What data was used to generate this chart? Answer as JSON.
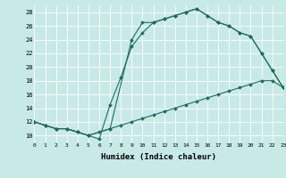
{
  "xlabel": "Humidex (Indice chaleur)",
  "xlim": [
    0,
    23
  ],
  "ylim": [
    9,
    29
  ],
  "yticks": [
    10,
    12,
    14,
    16,
    18,
    20,
    22,
    24,
    26,
    28
  ],
  "xticks": [
    0,
    1,
    2,
    3,
    4,
    5,
    6,
    7,
    8,
    9,
    10,
    11,
    12,
    13,
    14,
    15,
    16,
    17,
    18,
    19,
    20,
    21,
    22,
    23
  ],
  "bg_color": "#c8eae6",
  "line_color": "#1d6b5e",
  "grid_color": "#ffffff",
  "line1_x": [
    0,
    1,
    2,
    3,
    4,
    5,
    6,
    7,
    8,
    9,
    10,
    11,
    12,
    13,
    14,
    15,
    16,
    17,
    18,
    19,
    20,
    21,
    22,
    23
  ],
  "line1_y": [
    12,
    11.5,
    11,
    11,
    10.5,
    10,
    9.5,
    14.5,
    18.5,
    23,
    25,
    26.5,
    27,
    27.5,
    28,
    28.5,
    27.5,
    26.5,
    26,
    25,
    24.5,
    22,
    19.5,
    17
  ],
  "line2_x": [
    0,
    1,
    2,
    3,
    4,
    5,
    6,
    7,
    8,
    9,
    10,
    11,
    12,
    13,
    14,
    15,
    16,
    17,
    18,
    19,
    20,
    21,
    22,
    23
  ],
  "line2_y": [
    12,
    11.5,
    11,
    11,
    10.5,
    10,
    10.5,
    11,
    11.5,
    12,
    12.5,
    13,
    13.5,
    14,
    14.5,
    15,
    15.5,
    16,
    16.5,
    17,
    17.5,
    18,
    18,
    17
  ],
  "line3_x": [
    0,
    1,
    2,
    3,
    4,
    5,
    7,
    9,
    10,
    11,
    12,
    13,
    14,
    15,
    16,
    17,
    18,
    19,
    20,
    21,
    22,
    23
  ],
  "line3_y": [
    12,
    11.5,
    11,
    11,
    10.5,
    10,
    11,
    24,
    26.5,
    26.5,
    27,
    27.5,
    28,
    28.5,
    27.5,
    26.5,
    26,
    25,
    24.5,
    22,
    19.5,
    17
  ]
}
